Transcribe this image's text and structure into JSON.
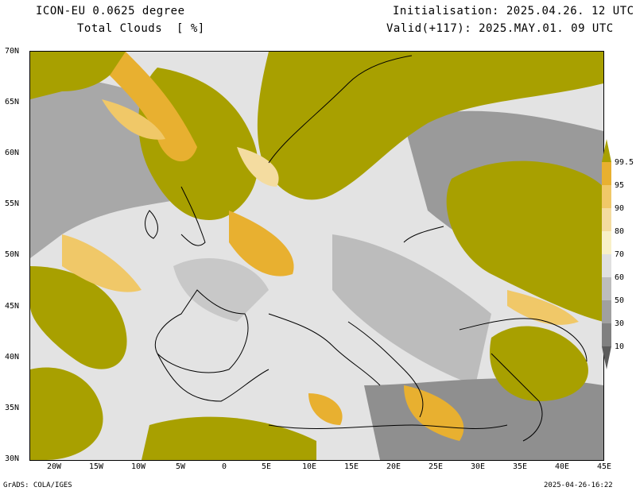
{
  "header": {
    "title_line1": "ICON-EU 0.0625 degree",
    "title_line2": "Total Clouds  [ %]",
    "init_line": "Initialisation: 2025.04.26. 12 UTC",
    "valid_line": "Valid(+117): 2025.MAY.01. 09 UTC"
  },
  "map": {
    "lat_labels": [
      "70N",
      "65N",
      "60N",
      "55N",
      "50N",
      "45N",
      "40N",
      "35N",
      "30N"
    ],
    "lon_labels": [
      "20W",
      "15W",
      "10W",
      "5W",
      "0",
      "5E",
      "10E",
      "15E",
      "20E",
      "25E",
      "30E",
      "35E",
      "40E",
      "45E"
    ],
    "lon_range": [
      -23,
      45
    ],
    "lat_range": [
      30,
      70
    ]
  },
  "colorbar": {
    "levels": [
      "99.5",
      "95",
      "90",
      "80",
      "70",
      "60",
      "50",
      "30",
      "10"
    ],
    "colors": [
      "#a8a000",
      "#e8b030",
      "#f0c868",
      "#f4dca0",
      "#f8f0c8",
      "#e0e0e0",
      "#bdbdbd",
      "#a0a0a0",
      "#808080",
      "#5c5c5c"
    ]
  },
  "footer": {
    "left": "GrADS: COLA/IGES",
    "right": "2025-04-26-16:22"
  }
}
